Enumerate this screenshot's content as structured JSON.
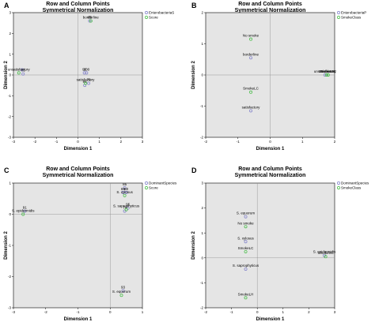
{
  "chart_data": [
    {
      "type": "scatter",
      "panel_label": "A",
      "title": "Row and Column Points",
      "subtitle": "Symmetrical Normalization",
      "xlabel": "Dimension 1",
      "ylabel": "Dimension 2",
      "xlim": [
        -3,
        3
      ],
      "ylim": [
        -3,
        3
      ],
      "xticks": [
        "-3",
        "-2",
        "-1",
        "0",
        "1",
        "2",
        "3"
      ],
      "yticks": [
        "-3",
        "-2",
        "-1",
        "0",
        "1",
        "2",
        "3"
      ],
      "legend_position": "top-right",
      "series": [
        {
          "name": "EnterobacteriaS",
          "color": "#7b7bc8",
          "points": [
            {
              "x": 0.3,
              "y": 0.1,
              "label": "90"
            },
            {
              "x": 0.4,
              "y": 0.1,
              "label": "100"
            },
            {
              "x": 0.55,
              "y": 2.6,
              "label": "65"
            },
            {
              "x": 0.5,
              "y": -0.4,
              "label": "79"
            },
            {
              "x": 0.32,
              "y": -0.5,
              "label": "86"
            },
            {
              "x": -2.55,
              "y": 0.05,
              "label": "85"
            },
            {
              "x": -2.6,
              "y": 0.25,
              "label": ""
            }
          ]
        },
        {
          "name": "Score",
          "color": "#3dba3d",
          "points": [
            {
              "x": 0.6,
              "y": 2.6,
              "label": "borderline"
            },
            {
              "x": 0.35,
              "y": -0.4,
              "label": "satisfactory"
            },
            {
              "x": -2.75,
              "y": 0.1,
              "label": "unsatisfactory"
            }
          ]
        }
      ]
    },
    {
      "type": "scatter",
      "panel_label": "B",
      "title": "Row and Column Points",
      "subtitle": "Symmetrical Normalization",
      "xlabel": "Dimension 1",
      "ylabel": "Dimension 2",
      "xlim": [
        -2,
        2
      ],
      "ylim": [
        -2,
        2
      ],
      "xticks": [
        "-2",
        "-1",
        "0",
        "1",
        "2"
      ],
      "yticks": [
        "-2",
        "-1",
        "0",
        "1",
        "2"
      ],
      "legend_position": "top-right",
      "series": [
        {
          "name": "EnterobacteriaP",
          "color": "#7b7bc8",
          "points": [
            {
              "x": -0.6,
              "y": 0.55,
              "label": "borderline"
            },
            {
              "x": -0.6,
              "y": -1.15,
              "label": "satisfactory"
            },
            {
              "x": 1.7,
              "y": 0.0,
              "label": "unsatisfactory"
            }
          ]
        },
        {
          "name": "SmokeClass",
          "color": "#3dba3d",
          "points": [
            {
              "x": -0.6,
              "y": 1.15,
              "label": "No smoke"
            },
            {
              "x": -0.6,
              "y": -0.55,
              "label": "SmokeLC"
            },
            {
              "x": 1.75,
              "y": 0.0,
              "label": "SmokeLH"
            },
            {
              "x": 1.8,
              "y": 0.0,
              "label": "SmokeSC"
            }
          ]
        }
      ]
    },
    {
      "type": "scatter",
      "panel_label": "C",
      "title": "Row and Column Points",
      "subtitle": "Symmetrical Normalization",
      "xlabel": "Dimension 1",
      "ylabel": "Dimension 2",
      "xlim": [
        -3,
        1
      ],
      "ylim": [
        -3,
        1
      ],
      "xticks": [
        "-3",
        "-2",
        "-1",
        "0",
        "1"
      ],
      "yticks": [
        "-3",
        "-2",
        "-1",
        "0",
        "1"
      ],
      "legend_position": "top-right",
      "series": [
        {
          "name": "DominantSpecies",
          "color": "#7b7bc8",
          "points": [
            {
              "x": 0.45,
              "y": 0.85,
              "label": "85"
            },
            {
              "x": 0.4,
              "y": 0.7,
              "label": "86"
            },
            {
              "x": 0.5,
              "y": 0.7,
              "label": "80"
            },
            {
              "x": 0.55,
              "y": 0.2,
              "label": "95"
            },
            {
              "x": 0.45,
              "y": 0.1,
              "label": "79"
            },
            {
              "x": 0.4,
              "y": -2.45,
              "label": "93"
            },
            {
              "x": -2.65,
              "y": 0.1,
              "label": "91"
            }
          ]
        },
        {
          "name": "Score",
          "color": "#3dba3d",
          "points": [
            {
              "x": 0.45,
              "y": 0.6,
              "label": "S. xylosus"
            },
            {
              "x": 0.5,
              "y": 0.15,
              "label": "S. saprophyticus"
            },
            {
              "x": 0.35,
              "y": -2.6,
              "label": "S. equorum"
            },
            {
              "x": -2.7,
              "y": 0.0,
              "label": "S. epidermidis"
            }
          ]
        }
      ]
    },
    {
      "type": "scatter",
      "panel_label": "D",
      "title": "Row and Column Points",
      "subtitle": "Symmetrical Normalization",
      "xlabel": "Dimension 1",
      "ylabel": "Dimension 2",
      "xlim": [
        -2,
        3
      ],
      "ylim": [
        -2,
        3
      ],
      "xticks": [
        "-2",
        "-1",
        "0",
        "1",
        "2",
        "3"
      ],
      "yticks": [
        "-2",
        "-1",
        "0",
        "1",
        "2",
        "3"
      ],
      "legend_position": "top-right",
      "series": [
        {
          "name": "DominantSpecies",
          "color": "#7b7bc8",
          "points": [
            {
              "x": -0.45,
              "y": 1.65,
              "label": "S. equorum"
            },
            {
              "x": -0.45,
              "y": 0.65,
              "label": "S. xylosus"
            },
            {
              "x": -0.45,
              "y": -0.45,
              "label": "S. saprophyticus"
            },
            {
              "x": 2.6,
              "y": 0.1,
              "label": "S. epidermidis"
            }
          ]
        },
        {
          "name": "SmokeClass",
          "color": "#3dba3d",
          "points": [
            {
              "x": -0.45,
              "y": 1.25,
              "label": "No smoke"
            },
            {
              "x": -0.45,
              "y": 0.25,
              "label": "SmokeLC"
            },
            {
              "x": -0.45,
              "y": -1.6,
              "label": "SmokeLH"
            },
            {
              "x": 2.65,
              "y": 0.05,
              "label": "SmokeSC"
            }
          ]
        }
      ]
    }
  ]
}
